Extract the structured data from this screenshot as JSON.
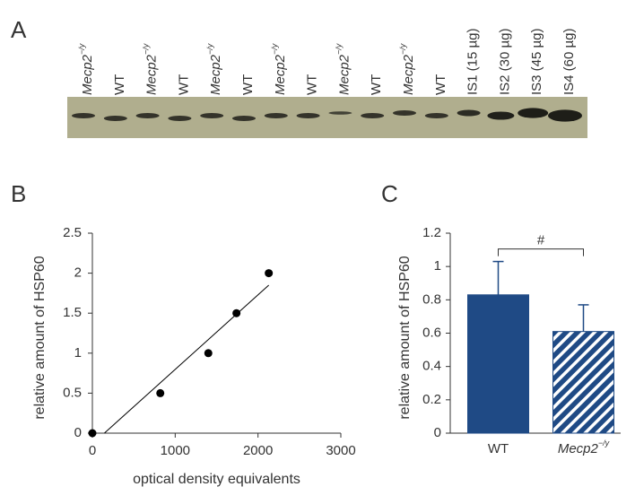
{
  "blot": {
    "label": "A",
    "lanes": [
      {
        "text": "Mecp2",
        "superscript": "−/y",
        "italic": true
      },
      {
        "text": "WT"
      },
      {
        "text": "Mecp2",
        "superscript": "−/y",
        "italic": true
      },
      {
        "text": "WT"
      },
      {
        "text": "Mecp2",
        "superscript": "−/y",
        "italic": true
      },
      {
        "text": "WT"
      },
      {
        "text": "Mecp2",
        "superscript": "−/y",
        "italic": true
      },
      {
        "text": "WT"
      },
      {
        "text": "Mecp2",
        "superscript": "−/y",
        "italic": true
      },
      {
        "text": "WT"
      },
      {
        "text": "Mecp2",
        "superscript": "−/y",
        "italic": true
      },
      {
        "text": "WT"
      },
      {
        "text": "IS1 (15 µg)"
      },
      {
        "text": "IS2 (30 µg)"
      },
      {
        "text": "IS3 (45 µg)"
      },
      {
        "text": "IS4 (60 µg)"
      }
    ]
  },
  "chart_data": [
    {
      "type": "scatter",
      "label": "B",
      "x_label": "optical density equivalents",
      "y_label": "relative amount of HSP60",
      "x": [
        0,
        820,
        1400,
        1740,
        2130
      ],
      "values": [
        0,
        0.5,
        1,
        1.5,
        2
      ],
      "color": "#000000",
      "xlim": [
        0,
        3000
      ],
      "xticks": [
        0,
        1000,
        2000,
        3000
      ],
      "ylim": [
        0,
        2.5
      ],
      "yticks": [
        0,
        0.5,
        1,
        1.5,
        2,
        2.5
      ],
      "trendline": true
    },
    {
      "type": "bar",
      "label": "C",
      "y_label": "relative amount of HSP60",
      "categories": [
        "WT",
        "Mecp2"
      ],
      "superscripts": [
        null,
        "−/y"
      ],
      "values": [
        0.83,
        0.61
      ],
      "errors": [
        0.2,
        0.16
      ],
      "color": "#1f4a85",
      "hatched": [
        false,
        true
      ],
      "ylim": [
        0,
        1.2
      ],
      "yticks": [
        0,
        0.2,
        0.4,
        0.6,
        0.8,
        1,
        1.2
      ],
      "annotation": "#"
    }
  ]
}
